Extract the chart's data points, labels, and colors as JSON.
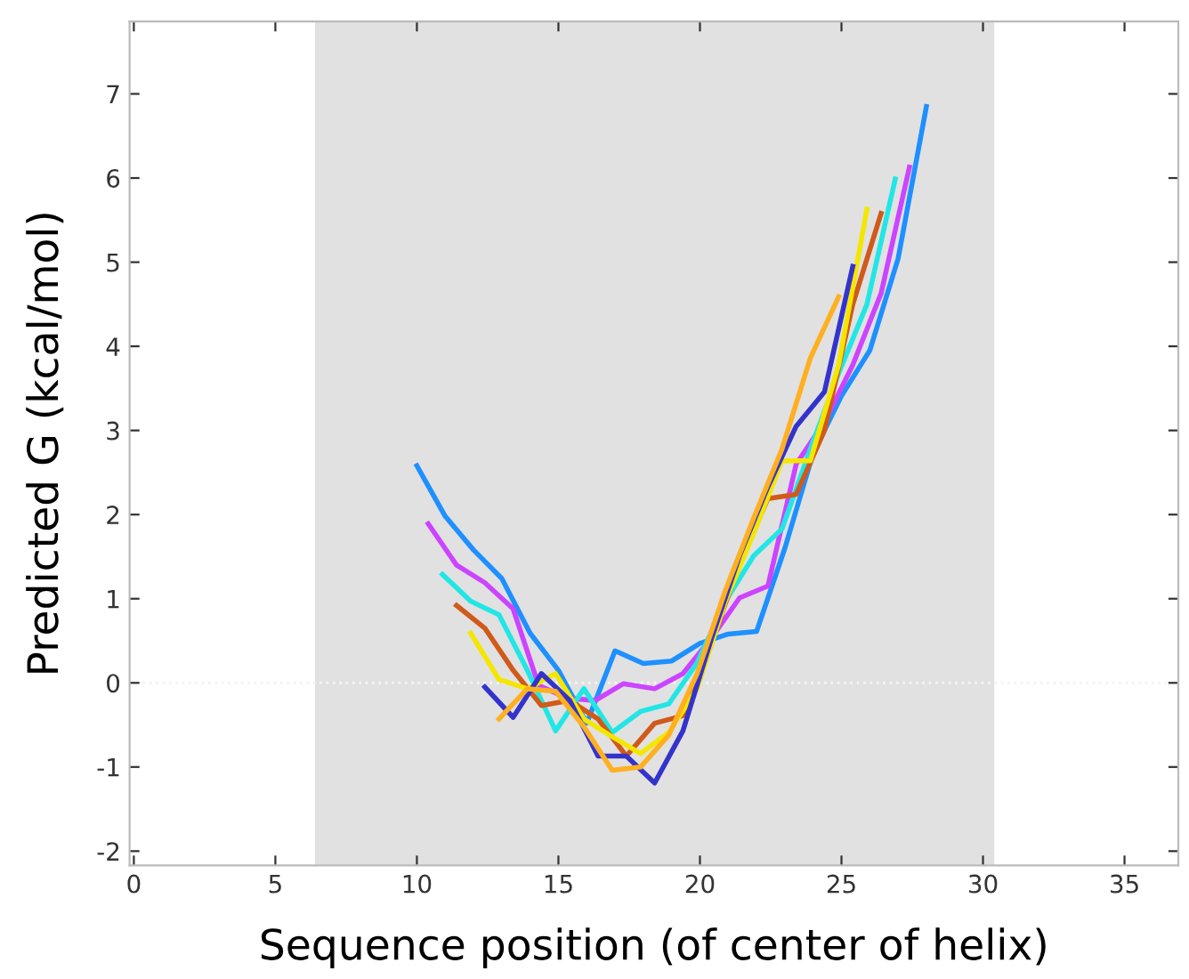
{
  "chart_data": {
    "type": "line",
    "xlabel": "Sequence position (of center of helix)",
    "ylabel": "Predicted G (kcal/mol)",
    "xlim": [
      -0.15,
      36.9
    ],
    "ylim": [
      -2.17,
      7.86
    ],
    "xticks": [
      0,
      5,
      10,
      15,
      20,
      25,
      30,
      35
    ],
    "yticks": [
      -2,
      -1,
      0,
      1,
      2,
      3,
      4,
      5,
      6,
      7
    ],
    "grid": false,
    "legend": false,
    "marker": "none",
    "line_style": "solid",
    "bands": [
      {
        "axis": "x",
        "from": 6.4,
        "to": 30.4,
        "label": null,
        "color": "#e1e1e1"
      }
    ],
    "ref_lines": [
      {
        "axis": "y",
        "value": 0,
        "label": null,
        "color": "#f4f4f4",
        "line_style": "dotted"
      }
    ],
    "series": [
      {
        "color": "#1e90ff",
        "x": [
          10,
          11,
          12,
          13,
          14,
          15,
          16,
          17,
          18,
          19,
          20,
          21,
          22,
          23,
          24,
          25,
          26,
          27,
          28
        ],
        "values": [
          2.58,
          1.98,
          1.58,
          1.24,
          0.59,
          0.15,
          -0.48,
          0.38,
          0.23,
          0.26,
          0.47,
          0.58,
          0.61,
          1.6,
          2.73,
          3.41,
          3.95,
          5.04,
          6.85
        ]
      },
      {
        "color": "#cc44ff",
        "x": [
          10.4,
          11.4,
          12.4,
          13.4,
          14.3,
          15.3,
          16.3,
          17.3,
          18.4,
          19.4,
          20.4,
          21.4,
          22.4,
          23.4,
          24.4,
          25.4,
          26.4,
          27.4
        ],
        "values": [
          1.89,
          1.4,
          1.19,
          0.88,
          -0.03,
          -0.18,
          -0.21,
          -0.01,
          -0.07,
          0.11,
          0.53,
          1.01,
          1.15,
          2.6,
          3.1,
          3.78,
          4.63,
          6.13
        ]
      },
      {
        "color": "#22e6e6",
        "x": [
          10.9,
          11.9,
          12.9,
          13.9,
          14.9,
          15.9,
          16.9,
          17.9,
          18.9,
          19.9,
          20.9,
          21.9,
          22.9,
          23.9,
          24.9,
          25.9,
          26.9
        ],
        "values": [
          1.29,
          0.97,
          0.81,
          0.15,
          -0.57,
          -0.07,
          -0.59,
          -0.34,
          -0.25,
          0.24,
          0.97,
          1.51,
          1.83,
          2.78,
          3.68,
          4.5,
          5.99
        ]
      },
      {
        "color": "#d05a1a",
        "x": [
          11.4,
          12.4,
          13.4,
          14.4,
          15.4,
          16.4,
          17.4,
          18.4,
          19.4,
          20.4,
          21.4,
          22.4,
          23.4,
          24.4,
          25.4,
          26.4
        ],
        "values": [
          0.92,
          0.65,
          0.15,
          -0.27,
          -0.21,
          -0.43,
          -0.87,
          -0.48,
          -0.39,
          0.47,
          1.42,
          2.19,
          2.24,
          3.0,
          4.5,
          5.58
        ]
      },
      {
        "color": "#f5e600",
        "x": [
          11.9,
          12.9,
          13.9,
          14.9,
          15.9,
          16.9,
          17.9,
          18.9,
          19.9,
          20.9,
          21.9,
          22.9,
          23.9,
          24.9,
          25.9
        ],
        "values": [
          0.59,
          0.04,
          -0.07,
          0.11,
          -0.43,
          -0.64,
          -0.84,
          -0.59,
          -0.07,
          0.97,
          1.78,
          2.64,
          2.64,
          3.78,
          5.63
        ]
      },
      {
        "color": "#3333cc",
        "x": [
          12.4,
          13.4,
          14.4,
          15.4,
          16.4,
          17.4,
          18.4,
          19.4,
          20.4,
          21.4,
          22.4,
          23.4,
          24.4,
          25.4
        ],
        "values": [
          -0.05,
          -0.41,
          0.11,
          -0.21,
          -0.87,
          -0.87,
          -1.19,
          -0.57,
          0.52,
          1.51,
          2.33,
          3.05,
          3.46,
          4.95
        ]
      },
      {
        "color": "#ffb020",
        "x": [
          12.9,
          13.9,
          14.9,
          15.9,
          16.9,
          17.9,
          18.9,
          19.9,
          20.9,
          21.9,
          22.9,
          23.9,
          24.9
        ],
        "values": [
          -0.43,
          -0.07,
          -0.1,
          -0.52,
          -1.04,
          -1.0,
          -0.62,
          0.11,
          1.1,
          1.96,
          2.78,
          3.86,
          4.59
        ]
      }
    ]
  }
}
